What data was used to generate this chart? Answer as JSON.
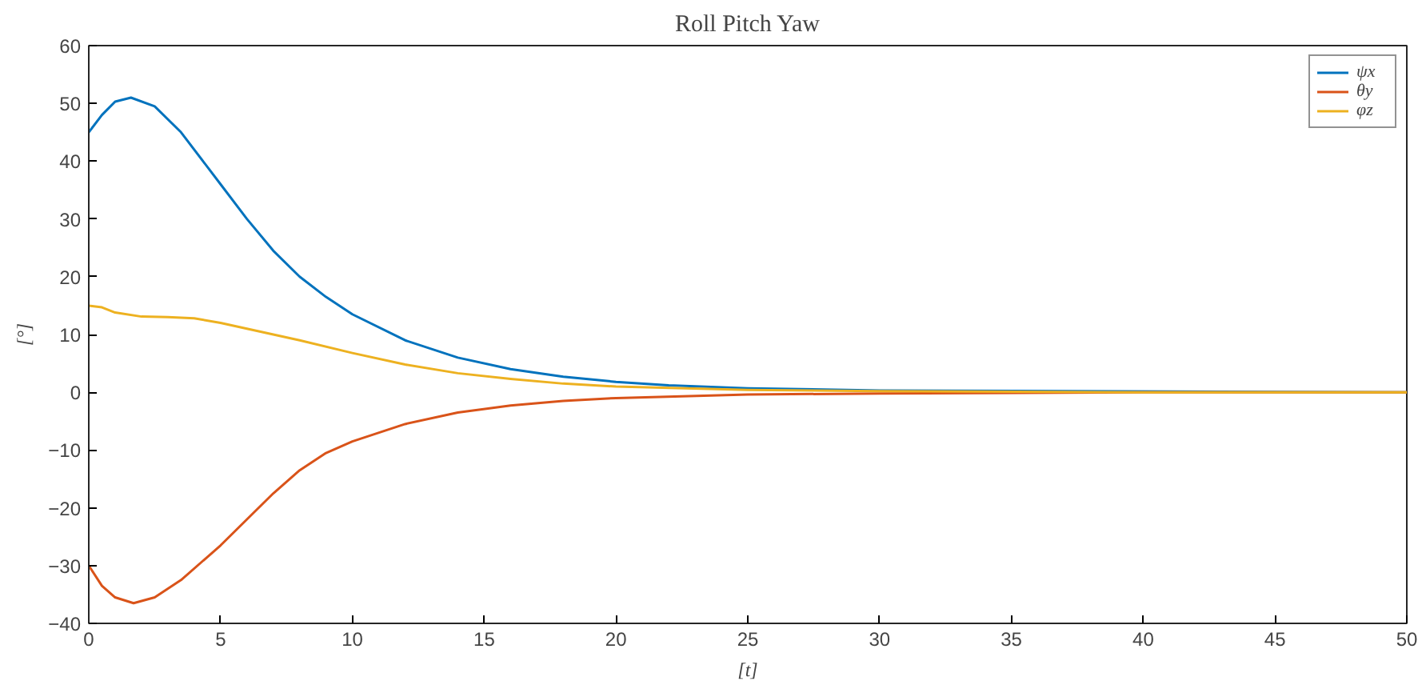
{
  "chart_data": {
    "type": "line",
    "title": "Roll Pitch Yaw",
    "xlabel": "[t]",
    "ylabel": "[°]",
    "xlim": [
      0,
      50
    ],
    "ylim": [
      -40,
      60
    ],
    "xticks": [
      0,
      5,
      10,
      15,
      20,
      25,
      30,
      35,
      40,
      45,
      50
    ],
    "yticks": [
      -40,
      -30,
      -20,
      -10,
      0,
      10,
      20,
      30,
      40,
      50,
      60
    ],
    "grid": false,
    "legend": "top right",
    "series": [
      {
        "name": "ψx",
        "color": "#0072bd",
        "x": [
          0,
          0.5,
          1,
          1.6,
          2.5,
          3.5,
          5,
          6,
          7,
          8,
          9,
          10,
          12,
          14,
          16,
          18,
          20,
          22,
          25,
          30,
          50
        ],
        "values": [
          45,
          48,
          50.3,
          51,
          49.5,
          45,
          36,
          30,
          24.5,
          20,
          16.5,
          13.5,
          9,
          6,
          4,
          2.7,
          1.8,
          1.2,
          0.7,
          0.3,
          0
        ]
      },
      {
        "name": "θy",
        "color": "#d95319",
        "x": [
          0,
          0.5,
          1,
          1.7,
          2.5,
          3.5,
          5,
          6,
          7,
          8,
          9,
          10,
          12,
          14,
          16,
          18,
          20,
          25,
          30,
          40,
          50
        ],
        "values": [
          -30,
          -33.5,
          -35.5,
          -36.5,
          -35.5,
          -32.5,
          -26.5,
          -22,
          -17.5,
          -13.5,
          -10.5,
          -8.5,
          -5.5,
          -3.5,
          -2.3,
          -1.5,
          -1,
          -0.4,
          -0.2,
          0,
          0
        ]
      },
      {
        "name": "φz",
        "color": "#edb120",
        "x": [
          0,
          0.5,
          1,
          2,
          3,
          4,
          5,
          6,
          7,
          8,
          10,
          12,
          14,
          16,
          18,
          20,
          25,
          30,
          40,
          50
        ],
        "values": [
          15,
          14.7,
          13.8,
          13.1,
          13,
          12.8,
          12,
          11,
          10,
          9,
          6.8,
          4.8,
          3.3,
          2.3,
          1.5,
          1,
          0.4,
          0.2,
          0,
          0
        ]
      }
    ]
  }
}
